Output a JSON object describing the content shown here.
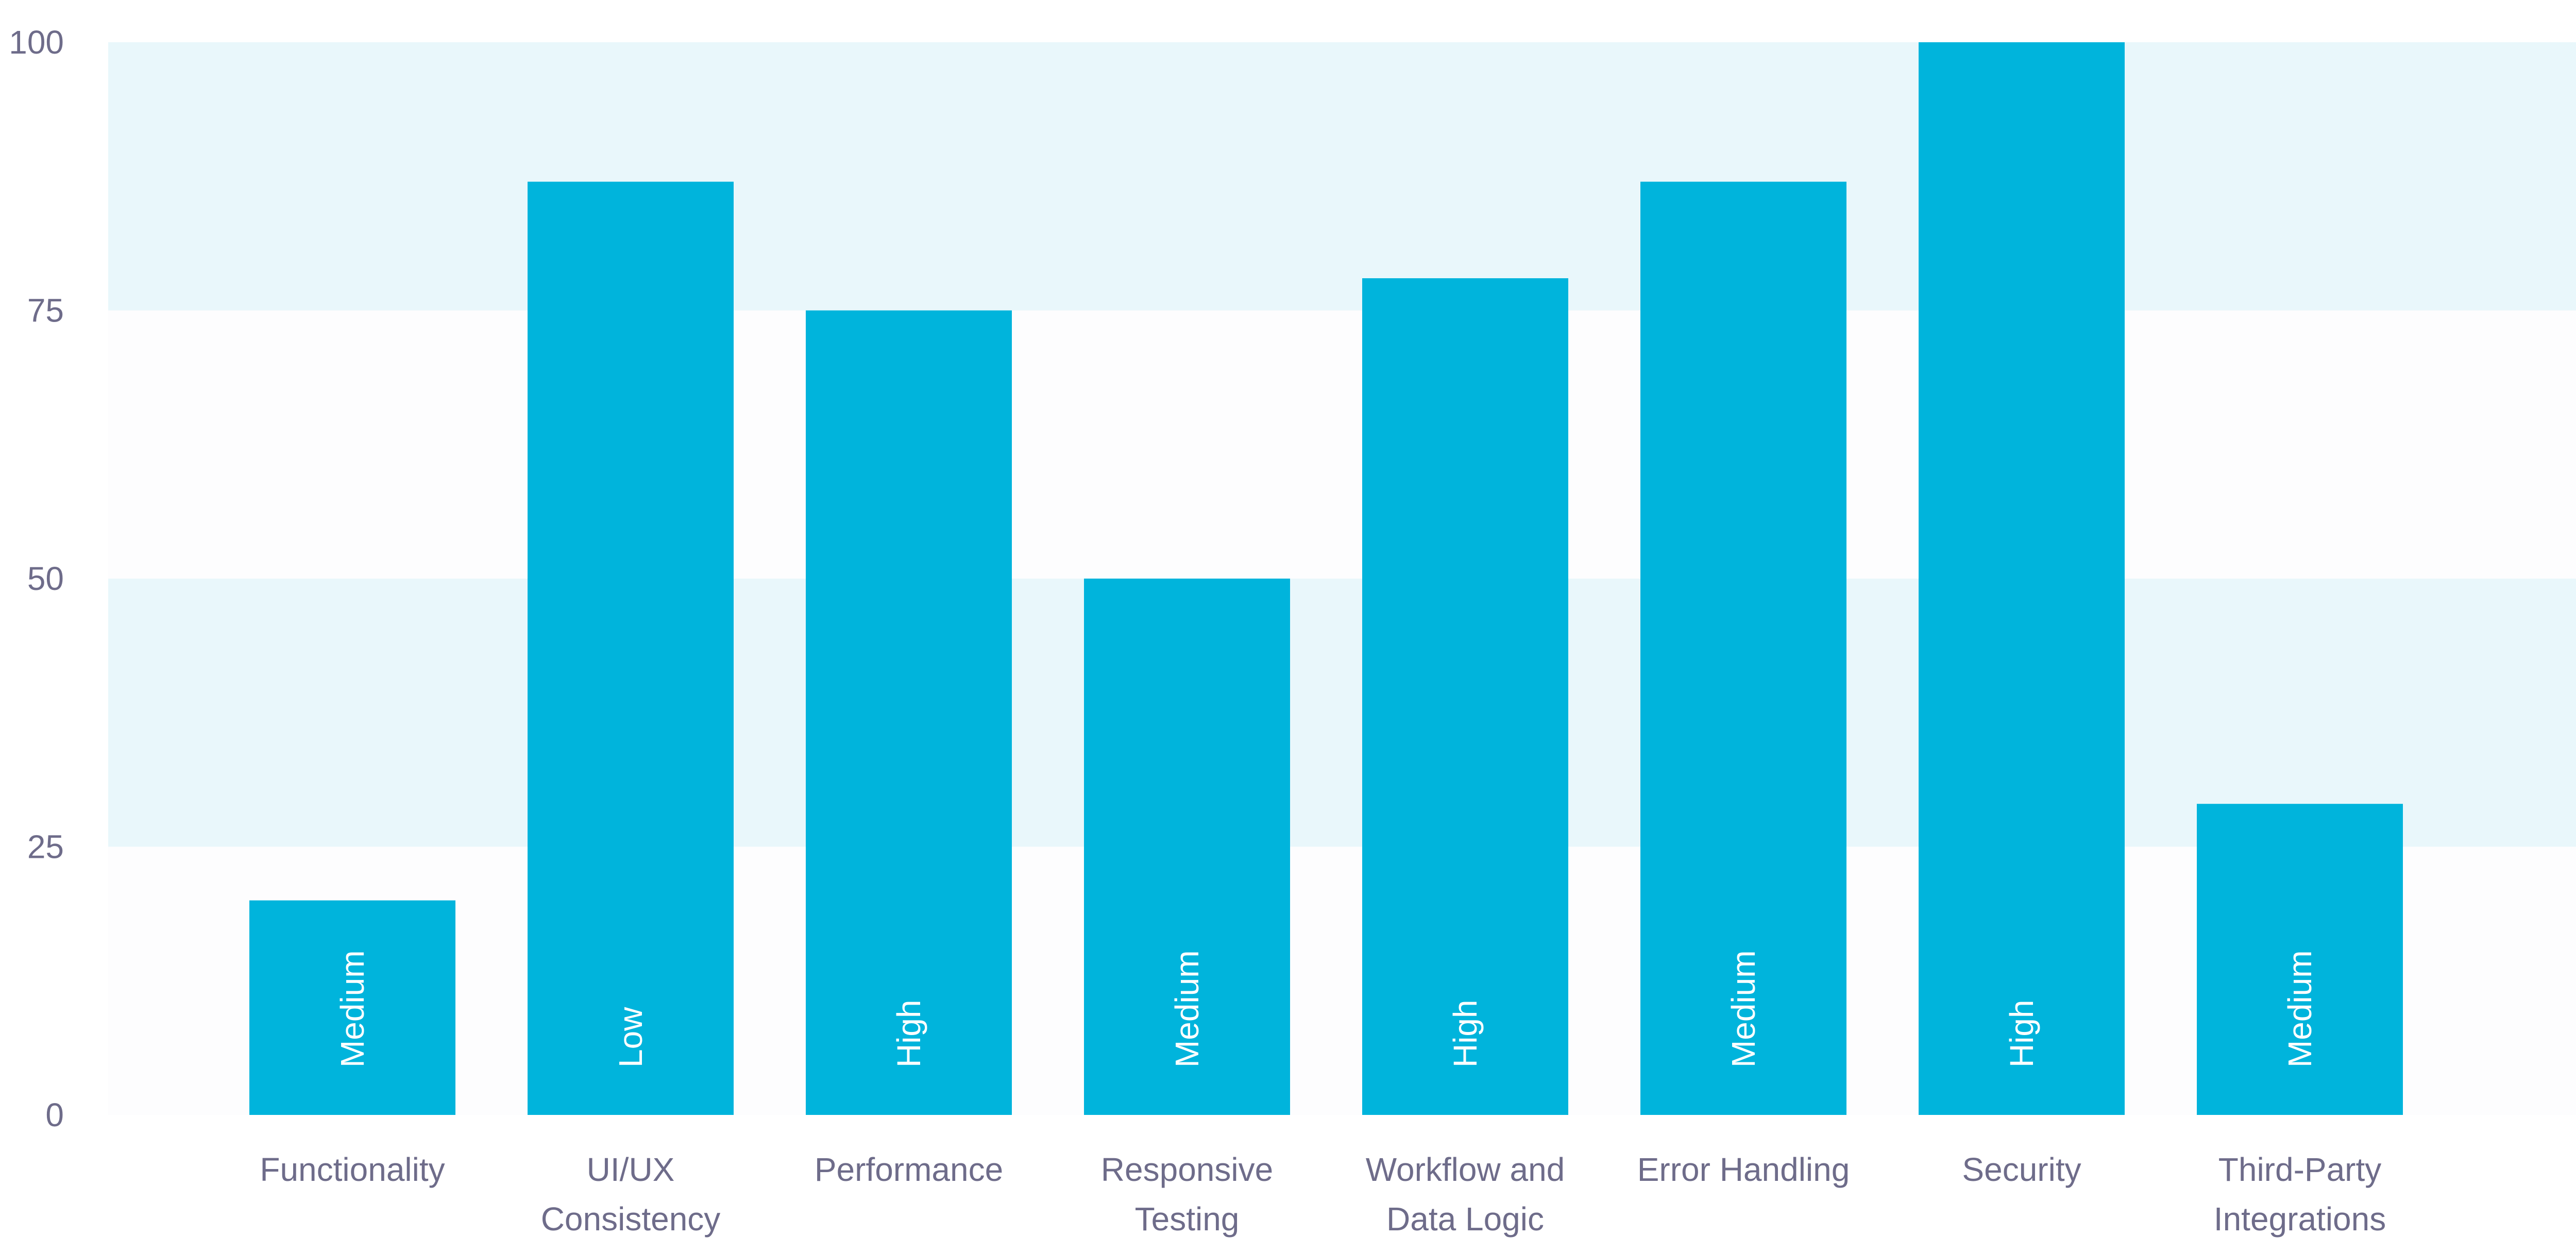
{
  "chart_data": {
    "type": "bar",
    "categories": [
      [
        "Functionality"
      ],
      [
        "UI/UX",
        "Consistency"
      ],
      [
        "Performance"
      ],
      [
        "Responsive",
        "Testing"
      ],
      [
        "Workflow and",
        "Data Logic"
      ],
      [
        "Error Handling"
      ],
      [
        "Security"
      ],
      [
        "Third-Party",
        "Integrations"
      ]
    ],
    "values": [
      20,
      87,
      75,
      50,
      78,
      87,
      100,
      29
    ],
    "bar_labels": [
      "Medium",
      "Low",
      "High",
      "Medium",
      "High",
      "Medium",
      "High",
      "Medium"
    ],
    "y_ticks": [
      0,
      25,
      50,
      75,
      100
    ],
    "ylim": [
      0,
      100
    ],
    "title": "",
    "xlabel": "",
    "ylabel": "",
    "grid": "alternating horizontal bands",
    "colors": {
      "bar": "#00b4dc",
      "band": "#e9f7fb",
      "band_alt": "#fdfdfe",
      "text": "#6e6c8a",
      "bar_text": "#ffffff"
    }
  }
}
